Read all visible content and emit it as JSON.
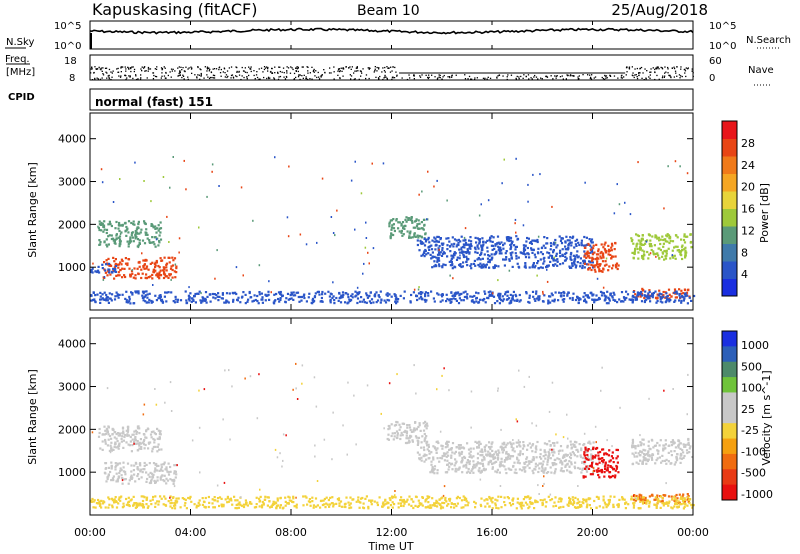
{
  "header": {
    "station": "Kapuskasing (fitACF)",
    "beam": "Beam 10",
    "date": "25/Aug/2018"
  },
  "noise_panel": {
    "left_label": "N.Sky",
    "left_tick_top": "10^5",
    "left_tick_bottom": "10^0",
    "right_label": "N.Search",
    "right_tick_top": "10^5",
    "right_tick_bottom": "10^0"
  },
  "freq_panel": {
    "left_label_line1": "Freq.",
    "left_label_line2": "[MHz]",
    "left_tick_top": "18",
    "left_tick_bottom": "8",
    "right_label": "Nave",
    "right_tick_top": "60",
    "right_tick_bottom": "0"
  },
  "cpid_panel": {
    "label": "CPID",
    "text": "normal (fast) 151"
  },
  "colors": {
    "power_scale": [
      "#1a2fe0",
      "#2a55c8",
      "#3f7aaa",
      "#5a9a78",
      "#9ec93a",
      "#e8d43a",
      "#f5a623",
      "#f07a1a",
      "#e84515",
      "#e8151a"
    ],
    "velocity_scale": [
      "#1a2fe0",
      "#2c5fb8",
      "#4d8a6a",
      "#6fc33a",
      "#c8c8c8",
      "#c8c8c8",
      "#f3d23a",
      "#f5a010",
      "#f06c10",
      "#e83a15",
      "#e8100f"
    ]
  },
  "chart_data": [
    {
      "type": "heatmap",
      "quantity": "Power",
      "ylabel": "Slant Range [km]",
      "ylim": [
        0,
        4600
      ],
      "yticks": [
        1000,
        2000,
        3000,
        4000
      ],
      "xlim": [
        0,
        24
      ],
      "xticks": [
        "00:00",
        "04:00",
        "08:00",
        "12:00",
        "16:00",
        "20:00",
        "00:00"
      ],
      "xlabel": "Time UT",
      "colorbar_label": "Power [dB]",
      "colorbar_ticks": [
        "4",
        "8",
        "12",
        "16",
        "20",
        "24",
        "28"
      ],
      "colorbar_range": [
        0,
        32
      ],
      "regions": [
        {
          "t": [
            0.5,
            3.4
          ],
          "r": [
            750,
            1250
          ],
          "level": 28
        },
        {
          "t": [
            0.3,
            2.8
          ],
          "r": [
            1500,
            2100
          ],
          "level": 12
        },
        {
          "t": [
            0.0,
            1.0
          ],
          "r": [
            900,
            1150
          ],
          "level": 6
        },
        {
          "t": [
            11.8,
            13.4
          ],
          "r": [
            1700,
            2200
          ],
          "level": 10
        },
        {
          "t": [
            13.0,
            20.0
          ],
          "r": [
            1250,
            1750
          ],
          "level": 6
        },
        {
          "t": [
            13.5,
            20.0
          ],
          "r": [
            1000,
            1250
          ],
          "level": 4
        },
        {
          "t": [
            19.6,
            21.0
          ],
          "r": [
            900,
            1600
          ],
          "level": 28
        },
        {
          "t": [
            21.5,
            23.9
          ],
          "r": [
            1200,
            1800
          ],
          "level": 14
        },
        {
          "t": [
            21.6,
            23.9
          ],
          "r": [
            280,
            520
          ],
          "level": 26
        },
        {
          "t": [
            0.0,
            24.0
          ],
          "r": [
            180,
            460
          ],
          "level": 6
        }
      ]
    },
    {
      "type": "heatmap",
      "quantity": "Velocity",
      "ylabel": "Slant Range [km]",
      "ylim": [
        0,
        4600
      ],
      "yticks": [
        1000,
        2000,
        3000,
        4000
      ],
      "xlim": [
        0,
        24
      ],
      "xticks": [
        "00:00",
        "04:00",
        "08:00",
        "12:00",
        "16:00",
        "20:00",
        "00:00"
      ],
      "xlabel": "Time UT",
      "colorbar_label": "Velocity [m s^-1]",
      "colorbar_ticks": [
        "1000",
        "500",
        "100",
        "25",
        "-25",
        "-100",
        "-500",
        "-1000"
      ],
      "regions": [
        {
          "t": [
            0.5,
            3.4
          ],
          "r": [
            750,
            1250
          ],
          "level": 25
        },
        {
          "t": [
            0.3,
            2.8
          ],
          "r": [
            1500,
            2100
          ],
          "level": 25
        },
        {
          "t": [
            11.8,
            13.4
          ],
          "r": [
            1700,
            2200
          ],
          "level": 0
        },
        {
          "t": [
            13.0,
            20.0
          ],
          "r": [
            1250,
            1750
          ],
          "level": 0
        },
        {
          "t": [
            13.5,
            20.0
          ],
          "r": [
            1000,
            1250
          ],
          "level": 0
        },
        {
          "t": [
            19.6,
            21.0
          ],
          "r": [
            900,
            1600
          ],
          "level": -500
        },
        {
          "t": [
            21.5,
            23.9
          ],
          "r": [
            1200,
            1800
          ],
          "level": 0
        },
        {
          "t": [
            21.6,
            23.9
          ],
          "r": [
            280,
            520
          ],
          "level": -300
        },
        {
          "t": [
            0.0,
            24.0
          ],
          "r": [
            180,
            460
          ],
          "level": -50
        }
      ]
    }
  ]
}
